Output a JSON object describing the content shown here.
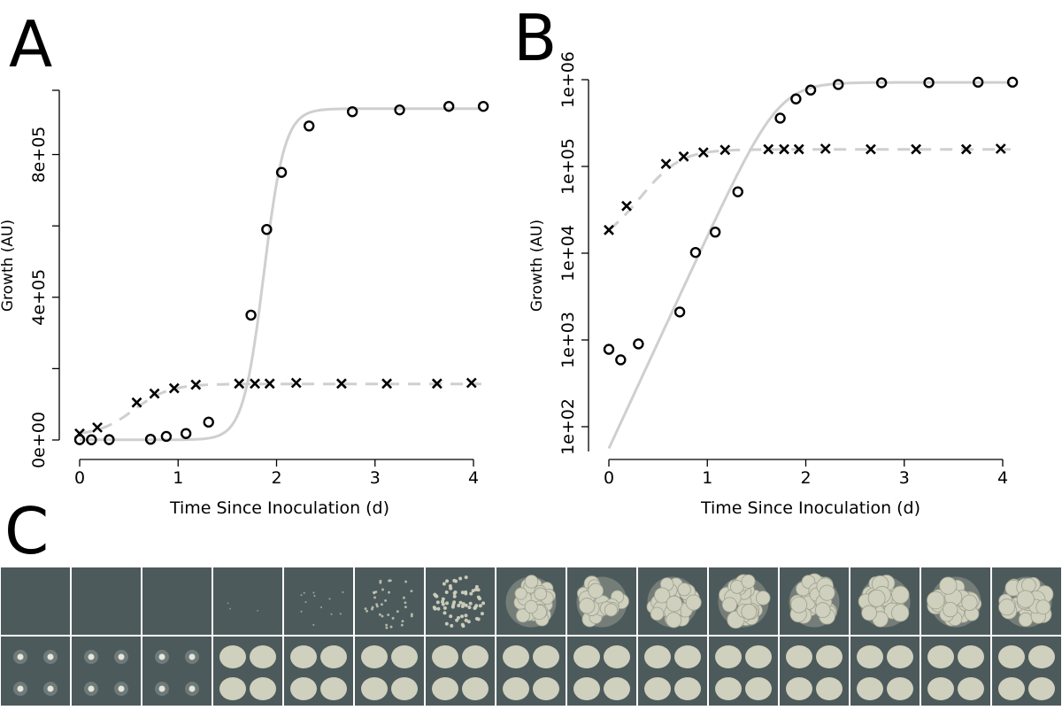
{
  "chart_data": [
    {
      "panel": "A",
      "type": "scatter",
      "xlabel": "Time Since Inoculation (d)",
      "ylabel": "Growth (AU)",
      "xlim": [
        0,
        4
      ],
      "ylim": [
        0,
        980000
      ],
      "x_ticks": [
        0,
        1,
        2,
        3,
        4
      ],
      "x_tick_labels": [
        "0",
        "1",
        "2",
        "3",
        "4"
      ],
      "y_ticks": [
        0,
        400000,
        800000
      ],
      "y_tick_labels": [
        "0e+00",
        "4e+05",
        "8e+05"
      ],
      "y_minor_ticks": [
        200000,
        600000
      ],
      "y_scale": "linear",
      "series": [
        {
          "marker": "circle",
          "x": [
            0.0,
            0.12,
            0.3,
            0.72,
            0.88,
            1.08,
            1.31,
            1.74,
            1.9,
            2.05,
            2.33,
            2.77,
            3.25,
            3.75,
            4.1
          ],
          "y": [
            900,
            600,
            900,
            2000,
            10000,
            18000,
            50000,
            350000,
            590000,
            750000,
            880000,
            920000,
            925000,
            935000,
            935000
          ],
          "fit": "solid"
        },
        {
          "marker": "x",
          "x": [
            0.0,
            0.18,
            0.58,
            0.76,
            0.96,
            1.18,
            1.62,
            1.78,
            1.93,
            2.2,
            2.66,
            3.12,
            3.63,
            3.98
          ],
          "y": [
            18000,
            35000,
            105000,
            130000,
            145000,
            155000,
            158000,
            158000,
            158000,
            160000,
            158000,
            158000,
            158000,
            160000
          ],
          "fit": "dashed"
        }
      ]
    },
    {
      "panel": "B",
      "type": "scatter",
      "xlabel": "Time Since Inoculation (d)",
      "ylabel": "Growth (AU)",
      "xlim": [
        0,
        4
      ],
      "ylim": [
        10,
        1000000
      ],
      "x_ticks": [
        0,
        1,
        2,
        3,
        4
      ],
      "x_tick_labels": [
        "0",
        "1",
        "2",
        "3",
        "4"
      ],
      "y_ticks": [
        100,
        1000,
        10000,
        100000,
        1000000
      ],
      "y_tick_labels": [
        "1e+02",
        "1e+03",
        "1e+04",
        "1e+05",
        "1e+06"
      ],
      "y_scale": "log",
      "series": [
        {
          "marker": "circle",
          "x": [
            0.0,
            0.12,
            0.3,
            0.72,
            0.88,
            1.08,
            1.31,
            1.74,
            1.9,
            2.05,
            2.33,
            2.77,
            3.25,
            3.75,
            4.1
          ],
          "y": [
            780,
            590,
            900,
            2100,
            10200,
            17500,
            51000,
            360000,
            600000,
            760000,
            880000,
            920000,
            925000,
            935000,
            935000
          ],
          "fit": "solid"
        },
        {
          "marker": "x",
          "x": [
            0.0,
            0.18,
            0.58,
            0.76,
            0.96,
            1.18,
            1.62,
            1.78,
            1.93,
            2.2,
            2.66,
            3.12,
            3.63,
            3.98
          ],
          "y": [
            18500,
            35000,
            107000,
            130000,
            145000,
            155000,
            158000,
            158000,
            158000,
            160000,
            158000,
            158000,
            158000,
            160000
          ],
          "fit": "dashed"
        }
      ]
    }
  ],
  "panels": {
    "a": "A",
    "b": "B",
    "c": "C"
  },
  "photo_strip": {
    "columns": 15,
    "top_row_growth": [
      0,
      0,
      0,
      0.02,
      0.08,
      0.22,
      0.4,
      0.72,
      0.82,
      0.9,
      0.95,
      0.97,
      0.98,
      0.98,
      0.99
    ],
    "bottom_row_colony": [
      "small",
      "small",
      "small",
      "large",
      "large",
      "large",
      "large",
      "large",
      "large",
      "large",
      "large",
      "large",
      "large",
      "large",
      "large"
    ],
    "background_color": "#4d5a5c",
    "colony_color": "#cfd0bd"
  }
}
